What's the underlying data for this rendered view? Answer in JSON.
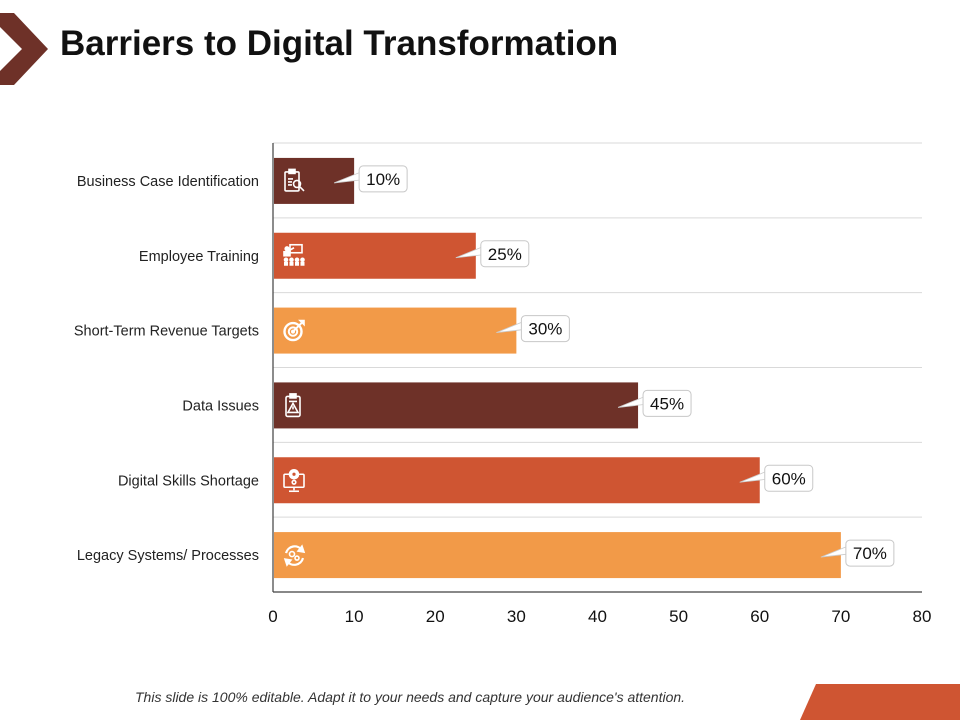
{
  "slide": {
    "title": "Barriers to Digital Transformation",
    "footer": "This slide is 100% editable. Adapt it to your needs and capture your audience's attention.",
    "colors": {
      "accent_dark": "#6E3128",
      "accent_mid": "#CF5532",
      "accent_light": "#F29A48",
      "footer_shape": "#CF5532",
      "chevron": "#6E3128"
    }
  },
  "chart_data": {
    "type": "bar",
    "orientation": "horizontal",
    "title": "",
    "xlabel": "",
    "ylabel": "",
    "xlim": [
      0,
      80
    ],
    "x_ticks": [
      0,
      10,
      20,
      30,
      40,
      50,
      60,
      70,
      80
    ],
    "grid": true,
    "legend": "none",
    "categories": [
      "Business Case Identification",
      "Employee Training",
      "Short-Term Revenue Targets",
      "Data Issues",
      "Digital Skills Shortage",
      "Legacy Systems/ Processes"
    ],
    "values": [
      10,
      25,
      30,
      45,
      60,
      70
    ],
    "data_labels": [
      "10%",
      "25%",
      "30%",
      "45%",
      "60%",
      "70%"
    ],
    "bar_colors": [
      "#6E3128",
      "#CF5532",
      "#F29A48",
      "#6E3128",
      "#CF5532",
      "#F29A48"
    ],
    "bar_icons": [
      "clipboard-search-icon",
      "presentation-audience-icon",
      "target-arrow-icon",
      "clipboard-warning-icon",
      "monitor-gear-icon",
      "cycle-gears-icon"
    ]
  }
}
